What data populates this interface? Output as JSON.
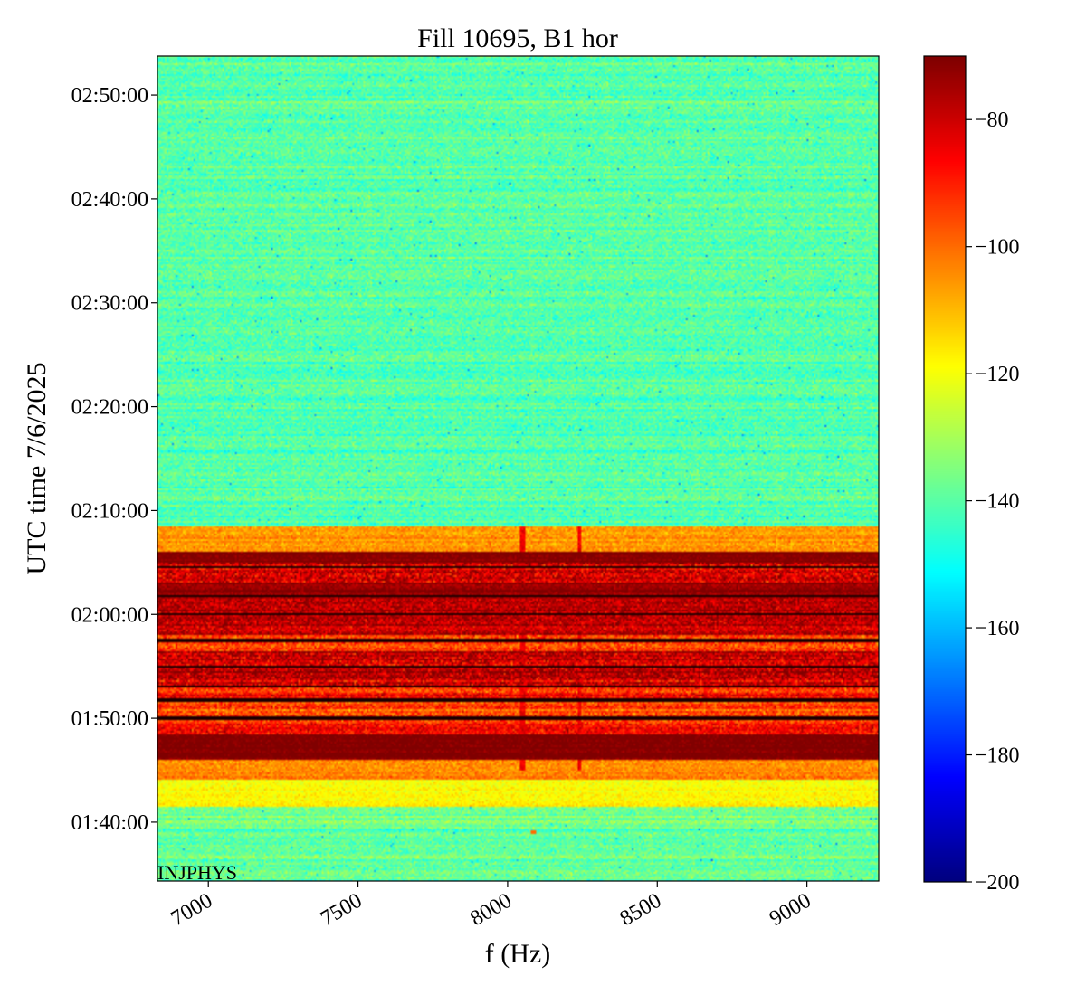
{
  "chart_data": {
    "type": "heatmap",
    "title": "Fill 10695, B1 hor",
    "xlabel": "f (Hz)",
    "ylabel": "UTC time 7/6/2025",
    "annotation": "INJPHYS",
    "xlim": [
      6830,
      9240
    ],
    "ylim": [
      "01:34:20",
      "02:53:45"
    ],
    "xticks": [
      {
        "value": 7000,
        "label": "7000"
      },
      {
        "value": 7500,
        "label": "7500"
      },
      {
        "value": 8000,
        "label": "8000"
      },
      {
        "value": 8500,
        "label": "8500"
      },
      {
        "value": 9000,
        "label": "9000"
      }
    ],
    "yticks": [
      {
        "value": "01:40:00",
        "label": "01:40:00"
      },
      {
        "value": "01:50:00",
        "label": "01:50:00"
      },
      {
        "value": "02:00:00",
        "label": "02:00:00"
      },
      {
        "value": "02:10:00",
        "label": "02:10:00"
      },
      {
        "value": "02:20:00",
        "label": "02:20:00"
      },
      {
        "value": "02:30:00",
        "label": "02:30:00"
      },
      {
        "value": "02:40:00",
        "label": "02:40:00"
      },
      {
        "value": "02:50:00",
        "label": "02:50:00"
      }
    ],
    "colorbar": {
      "colormap": "jet",
      "range": [
        -200,
        -70
      ],
      "ticks": [
        {
          "value": -80,
          "label": "−80"
        },
        {
          "value": -100,
          "label": "−100"
        },
        {
          "value": -120,
          "label": "−120"
        },
        {
          "value": -140,
          "label": "−140"
        },
        {
          "value": -160,
          "label": "−160"
        },
        {
          "value": -180,
          "label": "−180"
        },
        {
          "value": -200,
          "label": "−200"
        }
      ]
    },
    "bands": [
      {
        "t_start": "02:08:30",
        "t_end": "02:53:45",
        "level": -140,
        "noise": 6
      },
      {
        "t_start": "02:06:00",
        "t_end": "02:08:30",
        "level": -105,
        "noise": 5
      },
      {
        "t_start": "02:05:00",
        "t_end": "02:06:00",
        "level": -70,
        "noise": 3
      },
      {
        "t_start": "02:03:00",
        "t_end": "02:05:00",
        "level": -85,
        "noise": 10
      },
      {
        "t_start": "02:01:30",
        "t_end": "02:03:00",
        "level": -72,
        "noise": 4
      },
      {
        "t_start": "01:58:00",
        "t_end": "02:01:30",
        "level": -78,
        "noise": 8
      },
      {
        "t_start": "01:56:30",
        "t_end": "01:58:00",
        "level": -95,
        "noise": 8
      },
      {
        "t_start": "01:53:00",
        "t_end": "01:56:30",
        "level": -80,
        "noise": 10
      },
      {
        "t_start": "01:51:30",
        "t_end": "01:53:00",
        "level": -88,
        "noise": 8
      },
      {
        "t_start": "01:49:30",
        "t_end": "01:51:30",
        "level": -95,
        "noise": 8
      },
      {
        "t_start": "01:48:30",
        "t_end": "01:49:30",
        "level": -85,
        "noise": 8
      },
      {
        "t_start": "01:46:00",
        "t_end": "01:48:30",
        "level": -70,
        "noise": 3
      },
      {
        "t_start": "01:44:00",
        "t_end": "01:46:00",
        "level": -103,
        "noise": 5
      },
      {
        "t_start": "01:41:30",
        "t_end": "01:44:00",
        "level": -118,
        "noise": 4
      },
      {
        "t_start": "01:34:20",
        "t_end": "01:41:30",
        "level": -138,
        "noise": 6
      }
    ],
    "dark_lines": [
      "01:50:00",
      "01:51:45",
      "01:53:00",
      "01:55:00",
      "01:57:30",
      "02:00:00",
      "02:01:45",
      "02:04:30"
    ],
    "vertical_features": [
      {
        "f": 8050,
        "t_start": "01:45:00",
        "t_end": "02:08:30",
        "level": -85
      },
      {
        "f": 8240,
        "t_start": "01:45:00",
        "t_end": "02:08:30",
        "level": -85
      }
    ],
    "hot_spot": {
      "f": 8085,
      "t": "01:39:00",
      "level": -100
    }
  }
}
